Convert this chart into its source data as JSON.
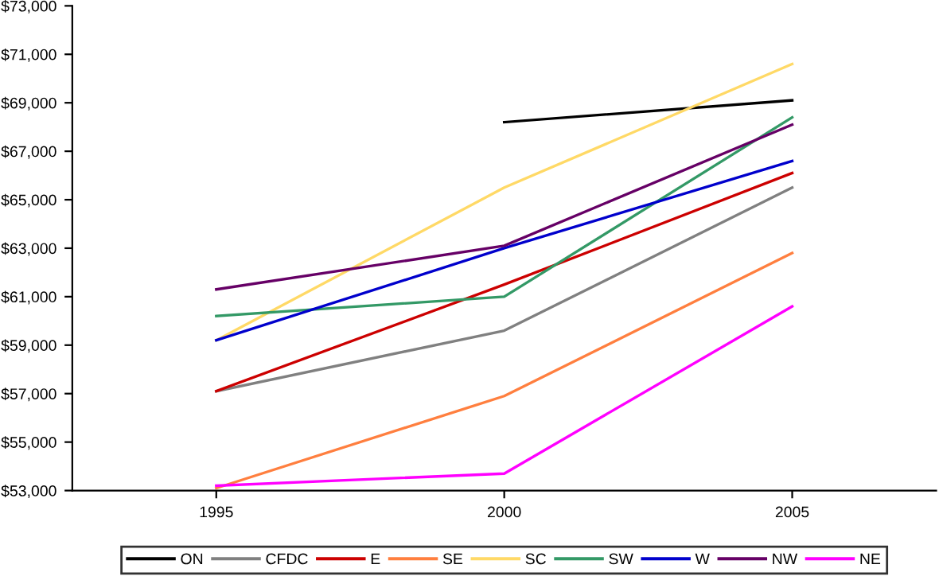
{
  "chart_data": {
    "type": "line",
    "categories": [
      "1995",
      "2000",
      "2005"
    ],
    "ylim": [
      53000,
      73000
    ],
    "yticks": [
      {
        "value": 53000,
        "label": "$53,000"
      },
      {
        "value": 55000,
        "label": "$55,000"
      },
      {
        "value": 57000,
        "label": "$57,000"
      },
      {
        "value": 59000,
        "label": "$59,000"
      },
      {
        "value": 61000,
        "label": "$61,000"
      },
      {
        "value": 63000,
        "label": "$63,000"
      },
      {
        "value": 65000,
        "label": "$65,000"
      },
      {
        "value": 67000,
        "label": "$67,000"
      },
      {
        "value": 69000,
        "label": "$69,000"
      },
      {
        "value": 71000,
        "label": "$71,000"
      },
      {
        "value": 73000,
        "label": "$73,000"
      }
    ],
    "grid": false,
    "legend": "bottom",
    "marker": "none",
    "line_style": "solid",
    "series": [
      {
        "name": "ON",
        "color": "#000000",
        "values": [
          null,
          68200,
          69100
        ]
      },
      {
        "name": "CFDC",
        "color": "#808080",
        "values": [
          57100,
          59600,
          65500
        ]
      },
      {
        "name": "E",
        "color": "#cc0000",
        "values": [
          57100,
          61500,
          66100
        ]
      },
      {
        "name": "SE",
        "color": "#ff7f3f",
        "values": [
          53100,
          56900,
          62800
        ]
      },
      {
        "name": "SC",
        "color": "#ffd966",
        "values": [
          59200,
          65500,
          70600
        ]
      },
      {
        "name": "SW",
        "color": "#339966",
        "values": [
          60200,
          61000,
          68400
        ]
      },
      {
        "name": "W",
        "color": "#0000cc",
        "values": [
          59200,
          63000,
          66600
        ]
      },
      {
        "name": "NW",
        "color": "#660066",
        "values": [
          61300,
          63100,
          68100
        ]
      },
      {
        "name": "NE",
        "color": "#ff00ff",
        "values": [
          53200,
          53700,
          60600
        ]
      }
    ]
  }
}
